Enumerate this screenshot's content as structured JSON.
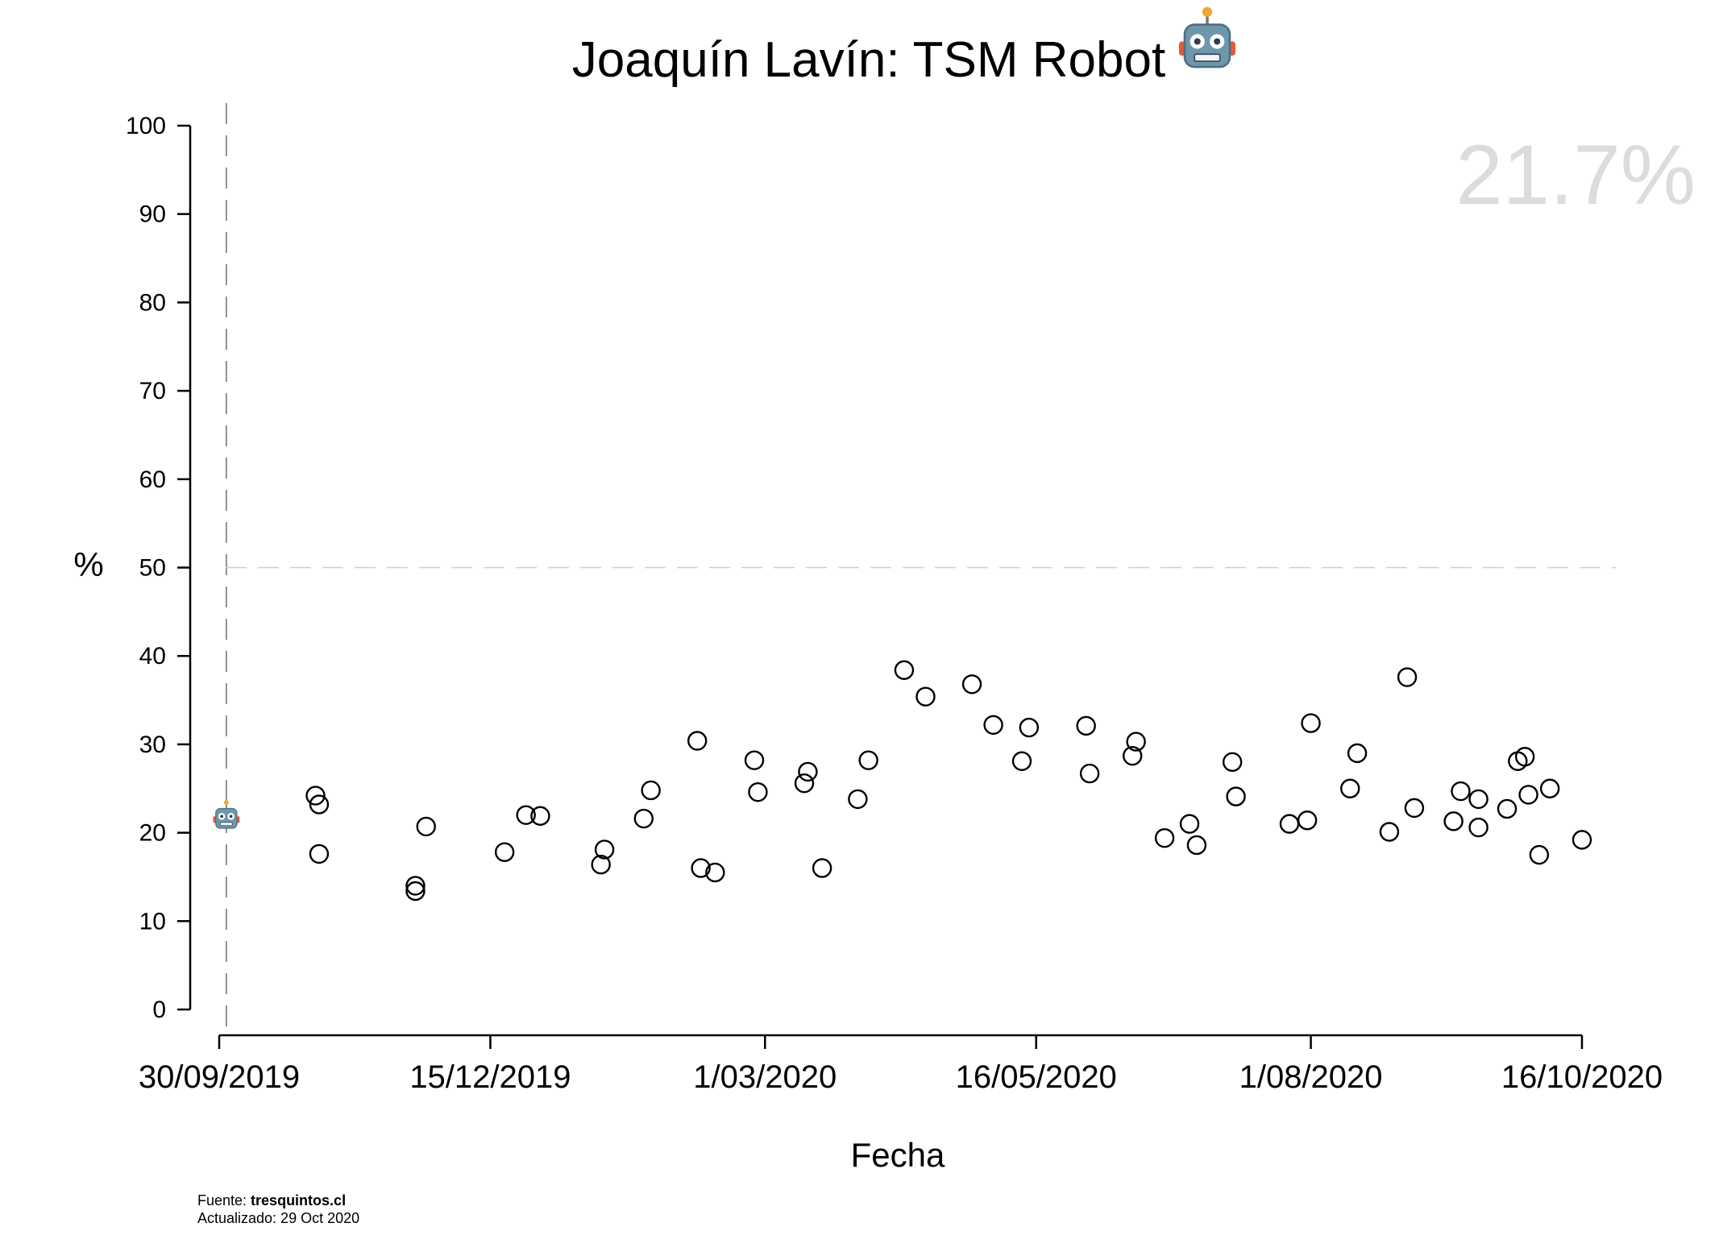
{
  "chart_data": {
    "type": "scatter",
    "title": "Joaquín Lavín: TSM Robot",
    "title_icon": "robot-face-icon",
    "xlabel": "Fecha",
    "ylabel": "%",
    "ylim": [
      0,
      100
    ],
    "yticks": [
      0,
      10,
      20,
      30,
      40,
      50,
      60,
      70,
      80,
      90,
      100
    ],
    "xlim": [
      "2019-09-30",
      "2020-10-16"
    ],
    "xticks": [
      {
        "date": "2019-09-30",
        "label": "30/09/2019"
      },
      {
        "date": "2019-12-15",
        "label": "15/12/2019"
      },
      {
        "date": "2020-03-01",
        "label": "1/03/2020"
      },
      {
        "date": "2020-05-16",
        "label": "16/05/2020"
      },
      {
        "date": "2020-08-01",
        "label": "1/08/2020"
      },
      {
        "date": "2020-10-16",
        "label": "16/10/2020"
      }
    ],
    "reference_line_y": 50,
    "reference_line_x": "2019-10-02",
    "marker": "open-circle",
    "highlight_value_label": "21.7%",
    "highlight_point": {
      "x": "2019-10-02",
      "y": 21.7,
      "icon": "robot-face-icon"
    },
    "series": [
      {
        "points": [
          {
            "x": "2019-10-27",
            "y": 24.2
          },
          {
            "x": "2019-10-28",
            "y": 23.2
          },
          {
            "x": "2019-10-28",
            "y": 17.6
          },
          {
            "x": "2019-11-24",
            "y": 14.0
          },
          {
            "x": "2019-11-24",
            "y": 13.4
          },
          {
            "x": "2019-11-27",
            "y": 20.7
          },
          {
            "x": "2019-12-19",
            "y": 17.8
          },
          {
            "x": "2019-12-25",
            "y": 22.0
          },
          {
            "x": "2019-12-29",
            "y": 21.9
          },
          {
            "x": "2020-01-15",
            "y": 16.4
          },
          {
            "x": "2020-01-16",
            "y": 18.1
          },
          {
            "x": "2020-01-27",
            "y": 21.6
          },
          {
            "x": "2020-01-29",
            "y": 24.8
          },
          {
            "x": "2020-02-11",
            "y": 30.4
          },
          {
            "x": "2020-02-12",
            "y": 16.0
          },
          {
            "x": "2020-02-16",
            "y": 15.5
          },
          {
            "x": "2020-02-27",
            "y": 28.2
          },
          {
            "x": "2020-02-28",
            "y": 24.6
          },
          {
            "x": "2020-03-12",
            "y": 25.6
          },
          {
            "x": "2020-03-13",
            "y": 26.9
          },
          {
            "x": "2020-03-17",
            "y": 16.0
          },
          {
            "x": "2020-03-27",
            "y": 23.8
          },
          {
            "x": "2020-03-30",
            "y": 28.2
          },
          {
            "x": "2020-04-09",
            "y": 38.4
          },
          {
            "x": "2020-04-15",
            "y": 35.4
          },
          {
            "x": "2020-04-28",
            "y": 36.8
          },
          {
            "x": "2020-05-04",
            "y": 32.2
          },
          {
            "x": "2020-05-12",
            "y": 28.1
          },
          {
            "x": "2020-05-14",
            "y": 31.9
          },
          {
            "x": "2020-05-30",
            "y": 32.1
          },
          {
            "x": "2020-05-31",
            "y": 26.7
          },
          {
            "x": "2020-06-12",
            "y": 28.7
          },
          {
            "x": "2020-06-13",
            "y": 30.3
          },
          {
            "x": "2020-06-21",
            "y": 19.4
          },
          {
            "x": "2020-06-28",
            "y": 21.0
          },
          {
            "x": "2020-06-30",
            "y": 18.6
          },
          {
            "x": "2020-07-10",
            "y": 28.0
          },
          {
            "x": "2020-07-11",
            "y": 24.1
          },
          {
            "x": "2020-07-26",
            "y": 21.0
          },
          {
            "x": "2020-07-31",
            "y": 21.4
          },
          {
            "x": "2020-08-01",
            "y": 32.4
          },
          {
            "x": "2020-08-12",
            "y": 25.0
          },
          {
            "x": "2020-08-14",
            "y": 29.0
          },
          {
            "x": "2020-08-23",
            "y": 20.1
          },
          {
            "x": "2020-08-28",
            "y": 37.6
          },
          {
            "x": "2020-08-30",
            "y": 22.8
          },
          {
            "x": "2020-09-10",
            "y": 21.3
          },
          {
            "x": "2020-09-12",
            "y": 24.7
          },
          {
            "x": "2020-09-17",
            "y": 23.8
          },
          {
            "x": "2020-09-17",
            "y": 20.6
          },
          {
            "x": "2020-09-25",
            "y": 22.7
          },
          {
            "x": "2020-09-28",
            "y": 28.1
          },
          {
            "x": "2020-09-30",
            "y": 28.6
          },
          {
            "x": "2020-10-01",
            "y": 24.3
          },
          {
            "x": "2020-10-04",
            "y": 17.5
          },
          {
            "x": "2020-10-07",
            "y": 25.0
          },
          {
            "x": "2020-10-16",
            "y": 19.2
          }
        ]
      }
    ],
    "grid": false,
    "legend": "none"
  },
  "footer": {
    "source_prefix": "Fuente: ",
    "source_name": "tresquintos.cl",
    "updated": "Actualizado: 29 Oct 2020"
  }
}
